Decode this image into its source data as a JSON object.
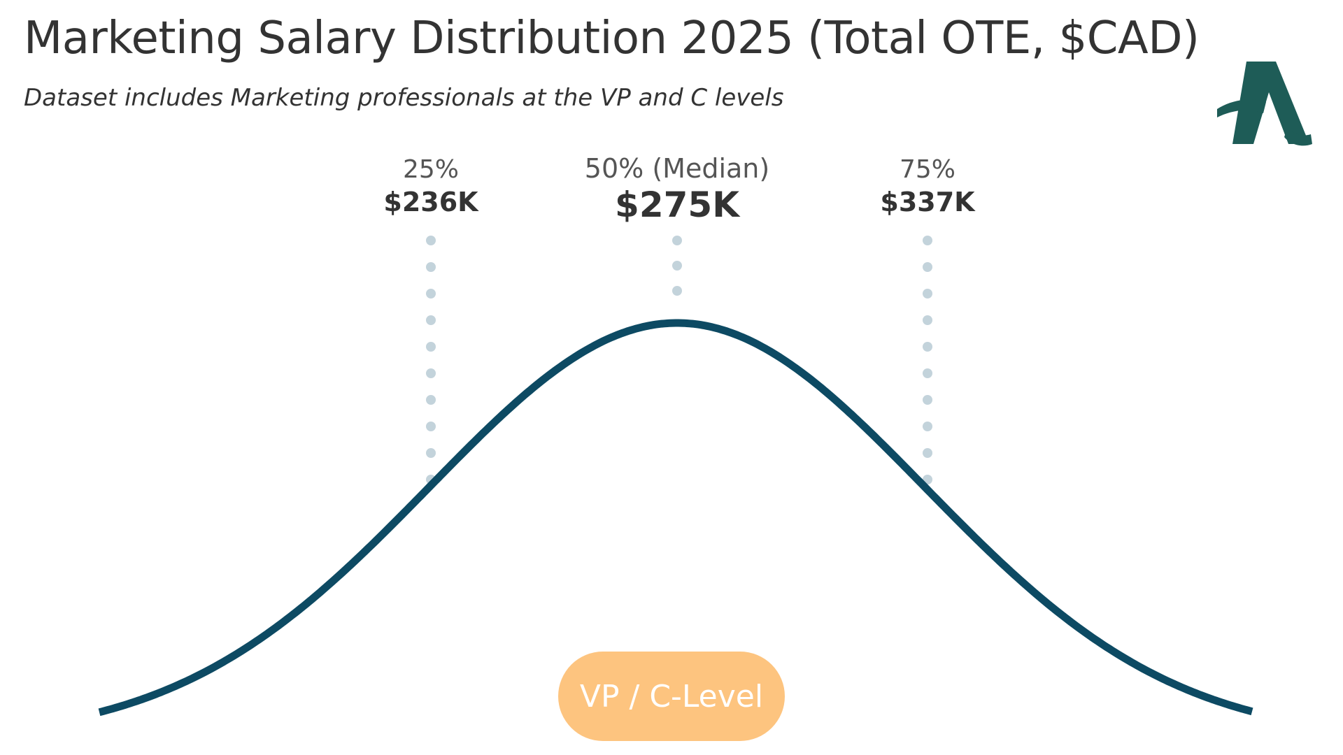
{
  "header": {
    "title": "Marketing Salary Distribution 2025 (Total OTE, $CAD)",
    "subtitle": "Dataset includes Marketing professionals at the VP and C levels"
  },
  "logo": {
    "icon": "stylized-letter-a-logo",
    "color": "#1e5c57"
  },
  "badge": {
    "label": "VP / C-Level",
    "color": "#fdc47f",
    "text_color": "#ffffff"
  },
  "colors": {
    "curve": "#0d4a63",
    "markers": "#c3d3db",
    "text": "#333333"
  },
  "chart_data": {
    "type": "line",
    "title": "Marketing Salary Distribution 2025 (Total OTE, $CAD)",
    "subtitle": "Dataset includes Marketing professionals at the VP and C levels",
    "curve": "normal-distribution",
    "percentiles": [
      {
        "label": "25%",
        "value_label": "$236K",
        "value": 236000
      },
      {
        "label": "50% (Median)",
        "value_label": "$275K",
        "value": 275000
      },
      {
        "label": "75%",
        "value_label": "$337K",
        "value": 337000
      }
    ],
    "series": [
      {
        "name": "VP / C-Level"
      }
    ],
    "grid": false,
    "axes_visible": false
  }
}
